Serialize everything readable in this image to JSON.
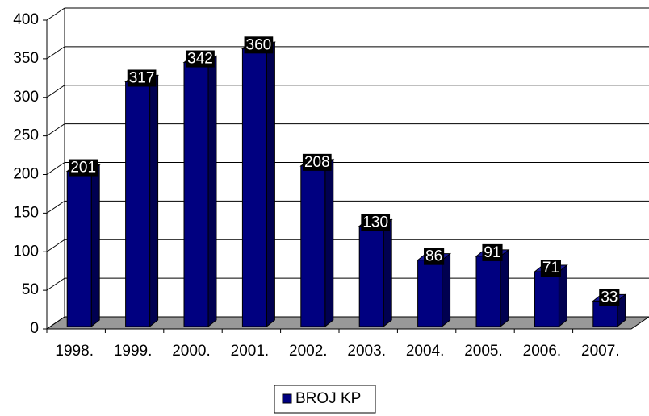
{
  "chart_data": {
    "type": "bar3d",
    "categories": [
      "1998.",
      "1999.",
      "2000.",
      "2001.",
      "2002.",
      "2003.",
      "2004.",
      "2005.",
      "2006.",
      "2007."
    ],
    "series": [
      {
        "name": "BROJ KP",
        "color": "#000080",
        "values": [
          201,
          317,
          342,
          360,
          208,
          130,
          86,
          91,
          71,
          33
        ]
      }
    ],
    "ylim": [
      0,
      400
    ],
    "yticks": [
      0,
      50,
      100,
      150,
      200,
      250,
      300,
      350,
      400
    ],
    "grid": true,
    "legend": "bottom"
  }
}
